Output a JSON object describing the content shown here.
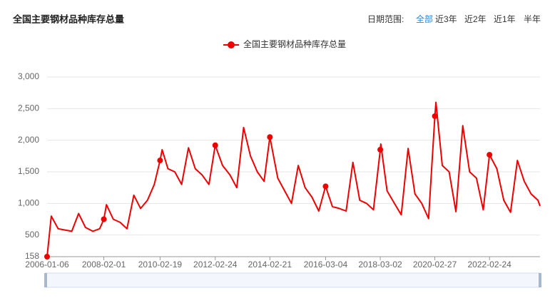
{
  "header": {
    "title": "全国主要钢材品种库存总量",
    "range_label": "日期范围:",
    "range_options": [
      "全部",
      "近3年",
      "近2年",
      "近1年",
      "半年"
    ],
    "active_range": 0
  },
  "chart_data": {
    "type": "line",
    "x": [
      "2006-01-06",
      "2006-03-03",
      "2006-06-02",
      "2006-09-01",
      "2006-12-01",
      "2007-03-02",
      "2007-06-01",
      "2007-09-07",
      "2007-12-07",
      "2008-02-01",
      "2008-03-07",
      "2008-06-06",
      "2008-09-05",
      "2008-12-05",
      "2009-03-06",
      "2009-06-05",
      "2009-09-04",
      "2009-12-04",
      "2010-02-19",
      "2010-03-19",
      "2010-06-04",
      "2010-09-03",
      "2010-12-03",
      "2011-03-04",
      "2011-06-03",
      "2011-09-02",
      "2011-12-02",
      "2012-02-24",
      "2012-06-01",
      "2012-09-07",
      "2012-12-07",
      "2013-03-08",
      "2013-06-07",
      "2013-09-06",
      "2013-12-06",
      "2014-02-21",
      "2014-06-06",
      "2014-09-05",
      "2014-12-05",
      "2015-03-06",
      "2015-06-05",
      "2015-09-04",
      "2015-12-04",
      "2016-03-04",
      "2016-06-03",
      "2016-09-02",
      "2016-12-02",
      "2017-03-03",
      "2017-06-02",
      "2017-09-01",
      "2017-12-01",
      "2018-03-02",
      "2018-03-09",
      "2018-06-01",
      "2018-09-07",
      "2018-12-07",
      "2019-03-08",
      "2019-06-07",
      "2019-09-06",
      "2019-12-06",
      "2020-02-27",
      "2020-03-13",
      "2020-06-05",
      "2020-09-04",
      "2020-12-04",
      "2021-03-05",
      "2021-06-04",
      "2021-09-03",
      "2021-12-03",
      "2022-02-24",
      "2022-06-02",
      "2022-09-02",
      "2022-12-02",
      "2023-03-03",
      "2023-06-02",
      "2023-09-01",
      "2023-12-01",
      "2023-12-29"
    ],
    "series": [
      {
        "name": "全国主要钢材品种库存总量",
        "color": "#ee0000",
        "values": [
          158,
          800,
          600,
          580,
          560,
          840,
          620,
          560,
          600,
          750,
          980,
          750,
          700,
          600,
          1130,
          920,
          1050,
          1300,
          1680,
          1850,
          1550,
          1500,
          1300,
          1880,
          1550,
          1450,
          1300,
          1920,
          1600,
          1450,
          1250,
          2200,
          1750,
          1500,
          1350,
          2050,
          1400,
          1200,
          1000,
          1600,
          1250,
          1100,
          880,
          1270,
          950,
          920,
          880,
          1650,
          1050,
          1000,
          900,
          1850,
          1940,
          1200,
          1000,
          820,
          1870,
          1150,
          1000,
          760,
          2380,
          2600,
          1600,
          1500,
          870,
          2230,
          1500,
          1400,
          900,
          1770,
          1550,
          1050,
          860,
          1680,
          1350,
          1150,
          1050,
          960
        ]
      }
    ],
    "ylim": [
      158,
      3000
    ],
    "yticks": [
      158,
      500,
      {
        "value": 1000,
        "label": "1,000"
      },
      {
        "value": 1500,
        "label": "1,500"
      },
      {
        "value": 2000,
        "label": "2,000"
      },
      {
        "value": 2500,
        "label": "2,500"
      },
      {
        "value": 3000,
        "label": "3,000"
      }
    ],
    "xticks": [
      "2006-01-06",
      "2008-02-01",
      "2010-02-19",
      "2012-02-24",
      "2014-02-21",
      "2016-03-04",
      "2018-03-02",
      "2020-02-27",
      "2022-02-24"
    ],
    "grid": true
  }
}
